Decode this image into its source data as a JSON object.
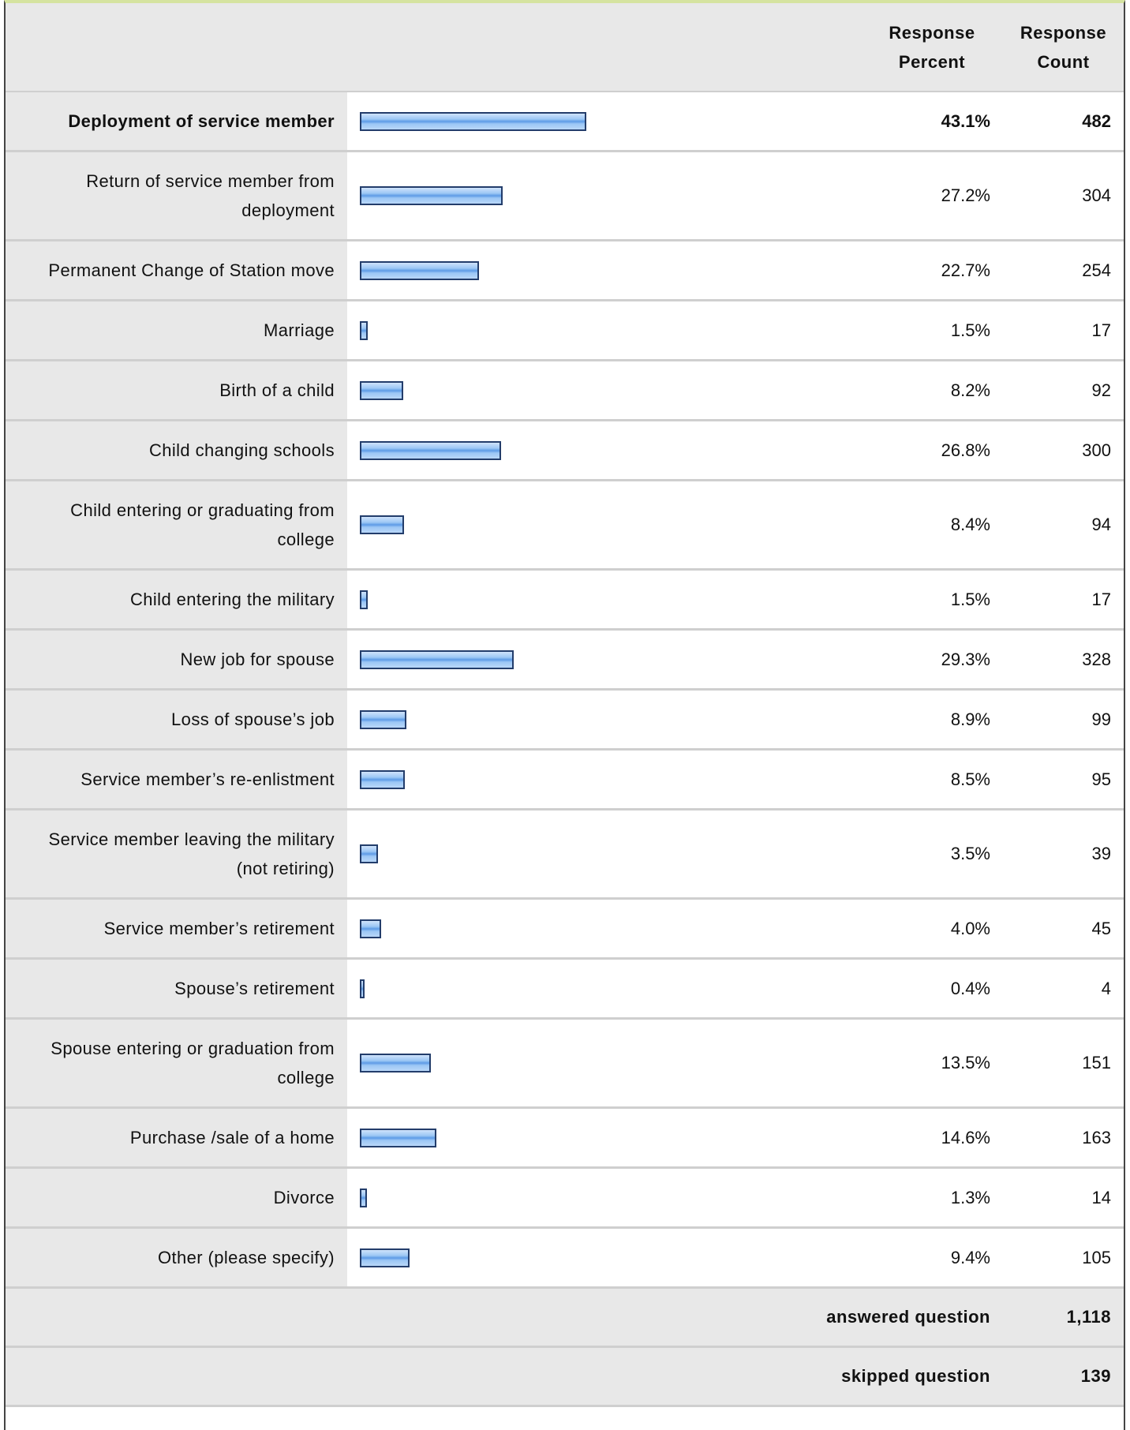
{
  "table": {
    "header": [
      "Response Percent",
      "Response Count"
    ],
    "rows": [
      {
        "label": "Deployment of service member",
        "percent": 43.1,
        "percent_label": "43.1%",
        "count": 482
      },
      {
        "label": "Return of service member from deployment",
        "percent": 27.2,
        "percent_label": "27.2%",
        "count": 304
      },
      {
        "label": "Permanent Change of Station move",
        "percent": 22.7,
        "percent_label": "22.7%",
        "count": 254
      },
      {
        "label": "Marriage",
        "percent": 1.5,
        "percent_label": "1.5%",
        "count": 17
      },
      {
        "label": "Birth of a child",
        "percent": 8.2,
        "percent_label": "8.2%",
        "count": 92
      },
      {
        "label": "Child changing schools",
        "percent": 26.8,
        "percent_label": "26.8%",
        "count": 300
      },
      {
        "label": "Child entering or graduating from college",
        "percent": 8.4,
        "percent_label": "8.4%",
        "count": 94
      },
      {
        "label": "Child entering the military",
        "percent": 1.5,
        "percent_label": "1.5%",
        "count": 17
      },
      {
        "label": "New job for spouse",
        "percent": 29.3,
        "percent_label": "29.3%",
        "count": 328
      },
      {
        "label": "Loss of spouse’s job",
        "percent": 8.9,
        "percent_label": "8.9%",
        "count": 99
      },
      {
        "label": "Service member’s re-enlistment",
        "percent": 8.5,
        "percent_label": "8.5%",
        "count": 95
      },
      {
        "label": "Service member leaving the military (not retiring)",
        "percent": 3.5,
        "percent_label": "3.5%",
        "count": 39
      },
      {
        "label": "Service member’s retirement",
        "percent": 4.0,
        "percent_label": "4.0%",
        "count": 45
      },
      {
        "label": "Spouse’s retirement",
        "percent": 0.4,
        "percent_label": "0.4%",
        "count": 4
      },
      {
        "label": "Spouse entering or graduation from college",
        "percent": 13.5,
        "percent_label": "13.5%",
        "count": 151
      },
      {
        "label": "Purchase /sale of a home",
        "percent": 14.6,
        "percent_label": "14.6%",
        "count": 163
      },
      {
        "label": "Divorce",
        "percent": 1.3,
        "percent_label": "1.3%",
        "count": 14
      },
      {
        "label": "Other (please specify)",
        "percent": 9.4,
        "percent_label": "9.4%",
        "count": 105
      }
    ],
    "footer": [
      {
        "label": "answered question",
        "value": "1,118"
      },
      {
        "label": "skipped question",
        "value": "139"
      }
    ]
  }
}
